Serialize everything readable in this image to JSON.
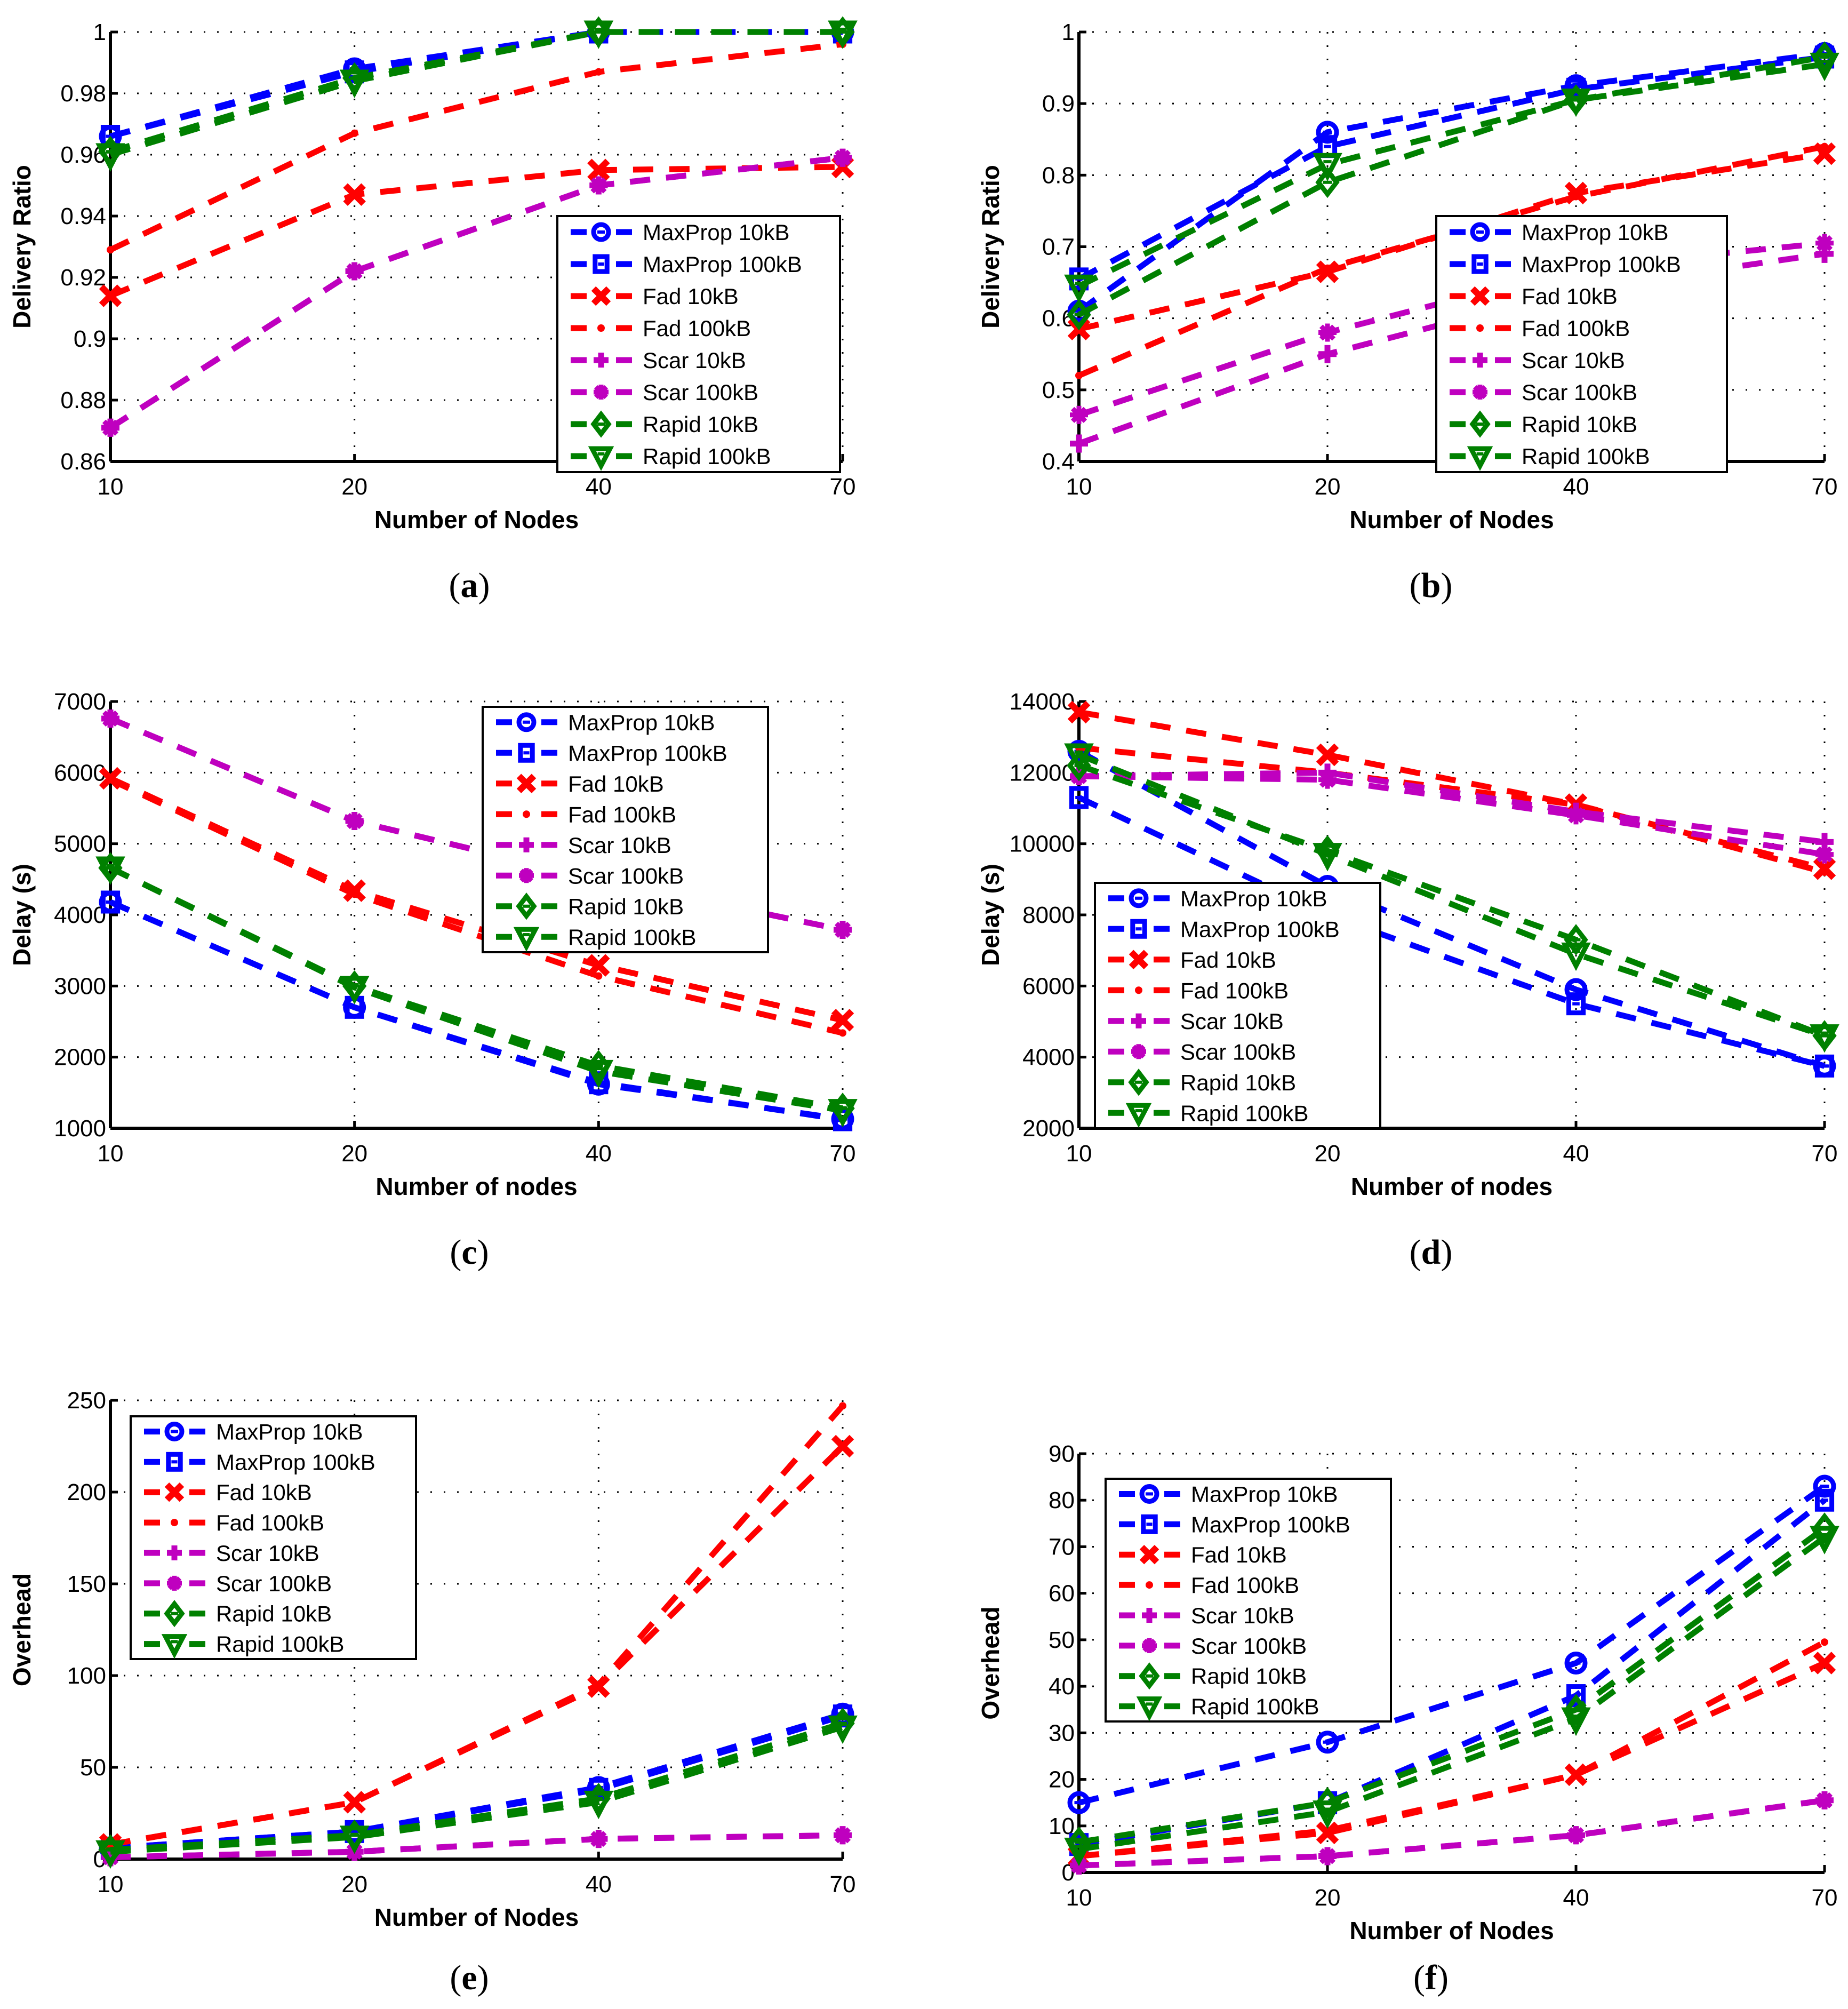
{
  "figure": {
    "legend_entries": [
      "MaxProp 10kB",
      "MaxProp 100kB",
      "Fad 10kB",
      "Fad 100kB",
      "Scar 10kB",
      "Scar 100kB",
      "Rapid 10kB",
      "Rapid 100kB"
    ],
    "series_styles": [
      {
        "name": "MaxProp 10kB",
        "color": "#0000ff",
        "marker": "circle"
      },
      {
        "name": "MaxProp 100kB",
        "color": "#0000ff",
        "marker": "square"
      },
      {
        "name": "Fad 10kB",
        "color": "#ff0000",
        "marker": "x"
      },
      {
        "name": "Fad 100kB",
        "color": "#ff0000",
        "marker": "dot"
      },
      {
        "name": "Scar 10kB",
        "color": "#bf00bf",
        "marker": "plus"
      },
      {
        "name": "Scar 100kB",
        "color": "#bf00bf",
        "marker": "asterisk"
      },
      {
        "name": "Rapid 10kB",
        "color": "#008000",
        "marker": "diamond"
      },
      {
        "name": "Rapid 100kB",
        "color": "#008000",
        "marker": "triangle-down"
      }
    ]
  },
  "chart_data": [
    {
      "id": "a",
      "caption": "a",
      "type": "line",
      "title": "",
      "xlabel": "Number of Nodes",
      "ylabel": "Delivery Ratio",
      "x": [
        "10",
        "20",
        "40",
        "70"
      ],
      "ylim": [
        0.86,
        1
      ],
      "yticks": [
        0.86,
        0.88,
        0.9,
        0.92,
        0.94,
        0.96,
        0.98,
        1
      ],
      "ytick_labels": [
        "0.86",
        "0.88",
        "0.9",
        "0.92",
        "0.94",
        "0.96",
        "0.98",
        "1"
      ],
      "grid": true,
      "legend_position": "lower-right",
      "series": [
        {
          "name": "MaxProp 10kB",
          "values": [
            0.966,
            0.988,
            1.0,
            1.0
          ]
        },
        {
          "name": "MaxProp 100kB",
          "values": [
            0.966,
            0.987,
            1.0,
            1.0
          ]
        },
        {
          "name": "Fad 10kB",
          "values": [
            0.914,
            0.947,
            0.955,
            0.956
          ]
        },
        {
          "name": "Fad 100kB",
          "values": [
            0.929,
            0.967,
            0.987,
            0.996
          ]
        },
        {
          "name": "Scar 10kB",
          "values": [
            0.871,
            0.922,
            0.95,
            0.959
          ]
        },
        {
          "name": "Scar 100kB",
          "values": [
            0.871,
            0.922,
            0.95,
            0.959
          ]
        },
        {
          "name": "Rapid 10kB",
          "values": [
            0.961,
            0.985,
            1.0,
            1.0
          ]
        },
        {
          "name": "Rapid 100kB",
          "values": [
            0.96,
            0.984,
            1.0,
            1.0
          ]
        }
      ]
    },
    {
      "id": "b",
      "caption": "b",
      "type": "line",
      "title": "",
      "xlabel": "Number of Nodes",
      "ylabel": "Delivery Ratio",
      "x": [
        "10",
        "20",
        "40",
        "70"
      ],
      "ylim": [
        0.4,
        1
      ],
      "yticks": [
        0.4,
        0.5,
        0.6,
        0.7,
        0.8,
        0.9,
        1
      ],
      "ytick_labels": [
        "0.4",
        "0.5",
        "0.6",
        "0.7",
        "0.8",
        "0.9",
        "1"
      ],
      "grid": true,
      "legend_position": "center-right",
      "series": [
        {
          "name": "MaxProp 10kB",
          "values": [
            0.61,
            0.86,
            0.925,
            0.97
          ]
        },
        {
          "name": "MaxProp 100kB",
          "values": [
            0.655,
            0.84,
            0.92,
            0.965
          ]
        },
        {
          "name": "Fad 10kB",
          "values": [
            0.585,
            0.665,
            0.775,
            0.83
          ]
        },
        {
          "name": "Fad 100kB",
          "values": [
            0.52,
            0.67,
            0.77,
            0.84
          ]
        },
        {
          "name": "Scar 10kB",
          "values": [
            0.425,
            0.55,
            0.64,
            0.69
          ]
        },
        {
          "name": "Scar 100kB",
          "values": [
            0.465,
            0.58,
            0.67,
            0.705
          ]
        },
        {
          "name": "Rapid 10kB",
          "values": [
            0.605,
            0.79,
            0.905,
            0.965
          ]
        },
        {
          "name": "Rapid 100kB",
          "values": [
            0.645,
            0.815,
            0.905,
            0.955
          ]
        }
      ]
    },
    {
      "id": "c",
      "caption": "c",
      "type": "line",
      "title": "",
      "xlabel": "Number of nodes",
      "ylabel": "Delay (s)",
      "x": [
        "10",
        "20",
        "40",
        "70"
      ],
      "ylim": [
        1000,
        7000
      ],
      "yticks": [
        1000,
        2000,
        3000,
        4000,
        5000,
        6000,
        7000
      ],
      "ytick_labels": [
        "1000",
        "2000",
        "3000",
        "4000",
        "5000",
        "6000",
        "7000"
      ],
      "grid": true,
      "legend_position": "top-right",
      "series": [
        {
          "name": "MaxProp 10kB",
          "values": [
            4180,
            2700,
            1620,
            1130
          ]
        },
        {
          "name": "MaxProp 100kB",
          "values": [
            4180,
            2700,
            1640,
            1120
          ]
        },
        {
          "name": "Fad 10kB",
          "values": [
            5920,
            4340,
            3290,
            2520
          ]
        },
        {
          "name": "Fad 100kB",
          "values": [
            5900,
            4290,
            3140,
            2340
          ]
        },
        {
          "name": "Scar 10kB",
          "values": [
            6760,
            5320,
            4500,
            3790
          ]
        },
        {
          "name": "Scar 100kB",
          "values": [
            6760,
            5320,
            4500,
            3790
          ]
        },
        {
          "name": "Rapid 10kB",
          "values": [
            4660,
            3000,
            1880,
            1280
          ]
        },
        {
          "name": "Rapid 100kB",
          "values": [
            4660,
            2980,
            1800,
            1250
          ]
        }
      ]
    },
    {
      "id": "d",
      "caption": "d",
      "type": "line",
      "title": "",
      "xlabel": "Number of nodes",
      "ylabel": "Delay (s)",
      "x": [
        "10",
        "20",
        "40",
        "70"
      ],
      "ylim": [
        2000,
        14000
      ],
      "yticks": [
        2000,
        4000,
        6000,
        8000,
        10000,
        12000,
        14000
      ],
      "ytick_labels": [
        "2000",
        "4000",
        "6000",
        "8000",
        "10000",
        "12000",
        "14000"
      ],
      "grid": true,
      "legend_position": "lower-left",
      "series": [
        {
          "name": "MaxProp 10kB",
          "values": [
            12600,
            8800,
            5900,
            3750
          ]
        },
        {
          "name": "MaxProp 100kB",
          "values": [
            11300,
            8000,
            5500,
            3750
          ]
        },
        {
          "name": "Fad 10kB",
          "values": [
            13700,
            12500,
            11100,
            9300
          ]
        },
        {
          "name": "Fad 100kB",
          "values": [
            12700,
            12000,
            11100,
            9200
          ]
        },
        {
          "name": "Scar 10kB",
          "values": [
            11900,
            12000,
            10900,
            10050
          ]
        },
        {
          "name": "Scar 100kB",
          "values": [
            11900,
            11800,
            10800,
            9700
          ]
        },
        {
          "name": "Rapid 10kB",
          "values": [
            12200,
            9800,
            7300,
            4600
          ]
        },
        {
          "name": "Rapid 100kB",
          "values": [
            12500,
            9700,
            6900,
            4600
          ]
        }
      ]
    },
    {
      "id": "e",
      "caption": "e",
      "type": "line",
      "title": "",
      "xlabel": "Number of Nodes",
      "ylabel": "Overhead",
      "x": [
        "10",
        "20",
        "40",
        "70"
      ],
      "ylim": [
        0,
        250
      ],
      "yticks": [
        0,
        50,
        100,
        150,
        200,
        250
      ],
      "ytick_labels": [
        "0",
        "50",
        "100",
        "150",
        "200",
        "250"
      ],
      "grid": true,
      "legend_position": "top-left",
      "series": [
        {
          "name": "MaxProp 10kB",
          "values": [
            6,
            15,
            39,
            79
          ]
        },
        {
          "name": "MaxProp 100kB",
          "values": [
            6,
            15,
            38,
            78
          ]
        },
        {
          "name": "Fad 10kB",
          "values": [
            8,
            31,
            94,
            225
          ]
        },
        {
          "name": "Fad 100kB",
          "values": [
            8,
            31,
            95,
            247
          ]
        },
        {
          "name": "Scar 10kB",
          "values": [
            1,
            4,
            11,
            13
          ]
        },
        {
          "name": "Scar 100kB",
          "values": [
            1,
            4,
            11,
            13
          ]
        },
        {
          "name": "Rapid 10kB",
          "values": [
            5,
            13,
            33,
            74
          ]
        },
        {
          "name": "Rapid 100kB",
          "values": [
            4,
            12,
            31,
            72
          ]
        }
      ]
    },
    {
      "id": "f",
      "caption": "f",
      "type": "line",
      "title": "",
      "xlabel": "Number of Nodes",
      "ylabel": "Overhead",
      "x": [
        "10",
        "20",
        "40",
        "70"
      ],
      "ylim": [
        0,
        90
      ],
      "yticks": [
        0,
        10,
        20,
        30,
        40,
        50,
        60,
        70,
        80,
        90
      ],
      "ytick_labels": [
        "0",
        "10",
        "20",
        "30",
        "40",
        "50",
        "60",
        "70",
        "80",
        "90"
      ],
      "grid": true,
      "legend_position": "top-left",
      "series": [
        {
          "name": "MaxProp 10kB",
          "values": [
            15,
            28,
            45,
            83
          ]
        },
        {
          "name": "MaxProp 100kB",
          "values": [
            6,
            15,
            38,
            80
          ]
        },
        {
          "name": "Fad 10kB",
          "values": [
            3.5,
            8.5,
            21,
            45
          ]
        },
        {
          "name": "Fad 100kB",
          "values": [
            3.5,
            9,
            21,
            49.5
          ]
        },
        {
          "name": "Scar 10kB",
          "values": [
            1.5,
            3.5,
            8,
            15.5
          ]
        },
        {
          "name": "Scar 100kB",
          "values": [
            1.5,
            3.5,
            8,
            15.5
          ]
        },
        {
          "name": "Rapid 10kB",
          "values": [
            6.5,
            15,
            35,
            74
          ]
        },
        {
          "name": "Rapid 100kB",
          "values": [
            5,
            13,
            33,
            72
          ]
        }
      ]
    }
  ]
}
